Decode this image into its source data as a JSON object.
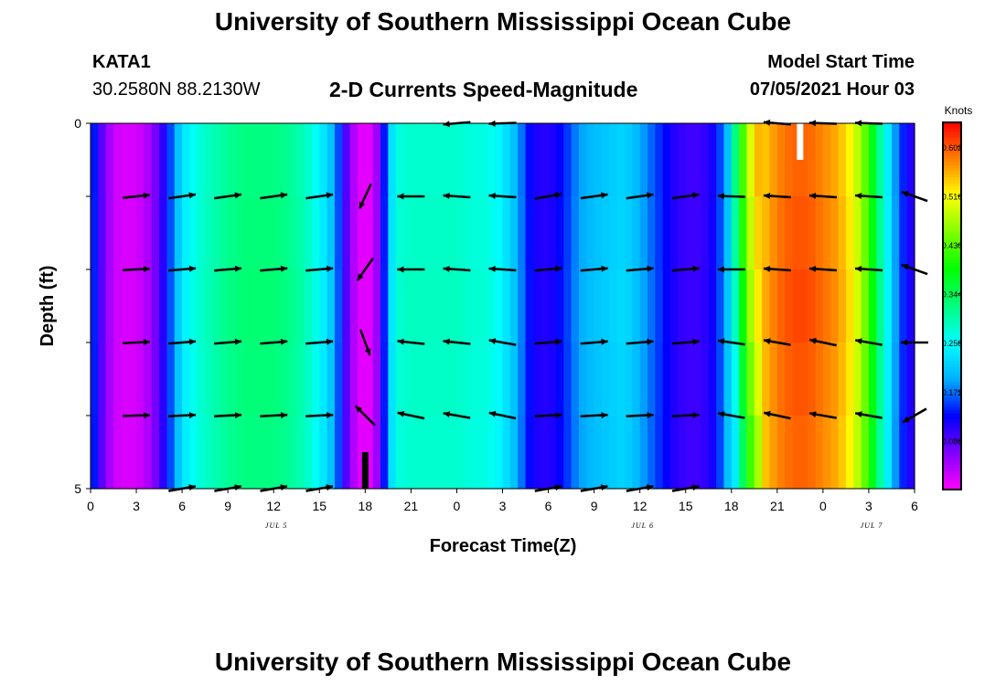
{
  "page": {
    "title_top": "University of Southern Mississippi Ocean Cube",
    "title_bottom": "University of Southern Mississippi Ocean Cube"
  },
  "header": {
    "station_id": "KATA1",
    "coordinates": "30.2580N  88.2130W",
    "chart_title": "2-D Currents Speed-Magnitude",
    "model_start_label": "Model Start Time",
    "model_start_value": "07/05/2021 Hour 03"
  },
  "colors": {
    "scale": [
      "#ff00ff",
      "#7f00ff",
      "#0000ff",
      "#00b0ff",
      "#00ffff",
      "#00ff80",
      "#00ff00",
      "#80ff00",
      "#ffff00",
      "#ff8000",
      "#ff0000"
    ],
    "arrow": "#000000",
    "missing_low": "#000000",
    "missing_high": "#ffffff"
  },
  "chart_data": {
    "type": "heatmap",
    "title": "2-D Currents Speed-Magnitude",
    "xlabel": "Forecast Time(Z)",
    "ylabel": "Depth (ft)",
    "colorbar_label": "Knots",
    "x_range_hours": [
      0,
      54
    ],
    "ylim": [
      0,
      5
    ],
    "y_ticks": [
      {
        "value": 0,
        "label": "0"
      },
      {
        "value": 5,
        "label": "5"
      }
    ],
    "y_minor_ticks": [
      1,
      2,
      3,
      4
    ],
    "x_ticks": [
      {
        "hour": 0,
        "label": "0"
      },
      {
        "hour": 3,
        "label": "3"
      },
      {
        "hour": 6,
        "label": "6"
      },
      {
        "hour": 9,
        "label": "9"
      },
      {
        "hour": 12,
        "label": "12"
      },
      {
        "hour": 15,
        "label": "15"
      },
      {
        "hour": 18,
        "label": "18"
      },
      {
        "hour": 21,
        "label": "21"
      },
      {
        "hour": 24,
        "label": "0"
      },
      {
        "hour": 27,
        "label": "3"
      },
      {
        "hour": 30,
        "label": "6"
      },
      {
        "hour": 33,
        "label": "9"
      },
      {
        "hour": 36,
        "label": "12"
      },
      {
        "hour": 39,
        "label": "15"
      },
      {
        "hour": 42,
        "label": "18"
      },
      {
        "hour": 45,
        "label": "21"
      },
      {
        "hour": 48,
        "label": "0"
      },
      {
        "hour": 51,
        "label": "3"
      },
      {
        "hour": 54,
        "label": "6"
      }
    ],
    "date_labels": [
      {
        "hour": 12,
        "label": "JUL 5"
      },
      {
        "hour": 36,
        "label": "JUL 6"
      },
      {
        "hour": 51,
        "label": "JUL 7"
      }
    ],
    "colorbar_ticks": [
      0.602,
      0.516,
      0.43,
      0.344,
      0.258,
      0.172,
      0.086
    ],
    "colorbar_range": [
      0.0,
      0.645
    ],
    "speed_profile": {
      "hours": [
        0,
        0.5,
        1,
        1.5,
        2,
        3,
        4,
        5,
        5.5,
        6,
        7,
        8,
        9,
        10,
        11,
        12,
        13,
        14,
        15,
        16,
        16.5,
        17,
        17.5,
        18,
        18.5,
        19,
        19.5,
        20,
        21,
        22,
        23,
        24,
        25,
        26,
        27,
        28,
        28.5,
        29,
        30,
        31,
        32,
        33,
        34,
        35,
        36,
        37,
        38,
        39,
        40,
        41,
        42,
        43,
        43.5,
        44,
        45,
        46,
        47,
        48,
        49,
        50,
        51,
        52,
        53,
        54
      ],
      "knots": [
        0.17,
        0.11,
        0.06,
        0.03,
        0.02,
        0.02,
        0.05,
        0.13,
        0.19,
        0.24,
        0.28,
        0.3,
        0.32,
        0.33,
        0.33,
        0.33,
        0.32,
        0.3,
        0.26,
        0.2,
        0.12,
        0.06,
        0.02,
        0.01,
        0.02,
        0.08,
        0.2,
        0.28,
        0.29,
        0.29,
        0.29,
        0.29,
        0.28,
        0.28,
        0.25,
        0.2,
        0.15,
        0.12,
        0.11,
        0.14,
        0.19,
        0.21,
        0.22,
        0.23,
        0.2,
        0.16,
        0.12,
        0.1,
        0.1,
        0.13,
        0.24,
        0.44,
        0.5,
        0.55,
        0.59,
        0.61,
        0.61,
        0.59,
        0.57,
        0.52,
        0.42,
        0.28,
        0.16,
        0.1
      ]
    },
    "vectors": {
      "hours": [
        3,
        6,
        9,
        12,
        15,
        18,
        21,
        24,
        27,
        30,
        33,
        36,
        39,
        42,
        45,
        48,
        51,
        54
      ],
      "depths": [
        0,
        1,
        2,
        3,
        4,
        5
      ],
      "directions_deg": [
        [
          null,
          null,
          null,
          null,
          null,
          null,
          null,
          -175,
          -178,
          null,
          null,
          null,
          null,
          null,
          175,
          178,
          178,
          null
        ],
        [
          6,
          8,
          8,
          8,
          8,
          -115,
          180,
          176,
          176,
          10,
          8,
          8,
          8,
          178,
          176,
          176,
          176,
          160
        ],
        [
          3,
          5,
          5,
          5,
          5,
          -125,
          180,
          176,
          176,
          5,
          5,
          5,
          5,
          180,
          176,
          176,
          176,
          160
        ],
        [
          3,
          5,
          5,
          5,
          5,
          -70,
          174,
          174,
          170,
          5,
          5,
          5,
          5,
          172,
          170,
          168,
          170,
          180
        ],
        [
          2,
          3,
          3,
          3,
          3,
          135,
          168,
          170,
          168,
          3,
          3,
          3,
          3,
          170,
          168,
          170,
          170,
          -150
        ],
        [
          null,
          10,
          10,
          10,
          10,
          null,
          null,
          null,
          null,
          10,
          10,
          10,
          10,
          null,
          null,
          null,
          null,
          null
        ]
      ]
    },
    "missing_marks": [
      {
        "hour": 18,
        "depth_from": 4.5,
        "depth_to": 5,
        "kind": "low"
      },
      {
        "hour": 46.5,
        "depth_from": 0,
        "depth_to": 0.5,
        "kind": "high"
      }
    ]
  }
}
